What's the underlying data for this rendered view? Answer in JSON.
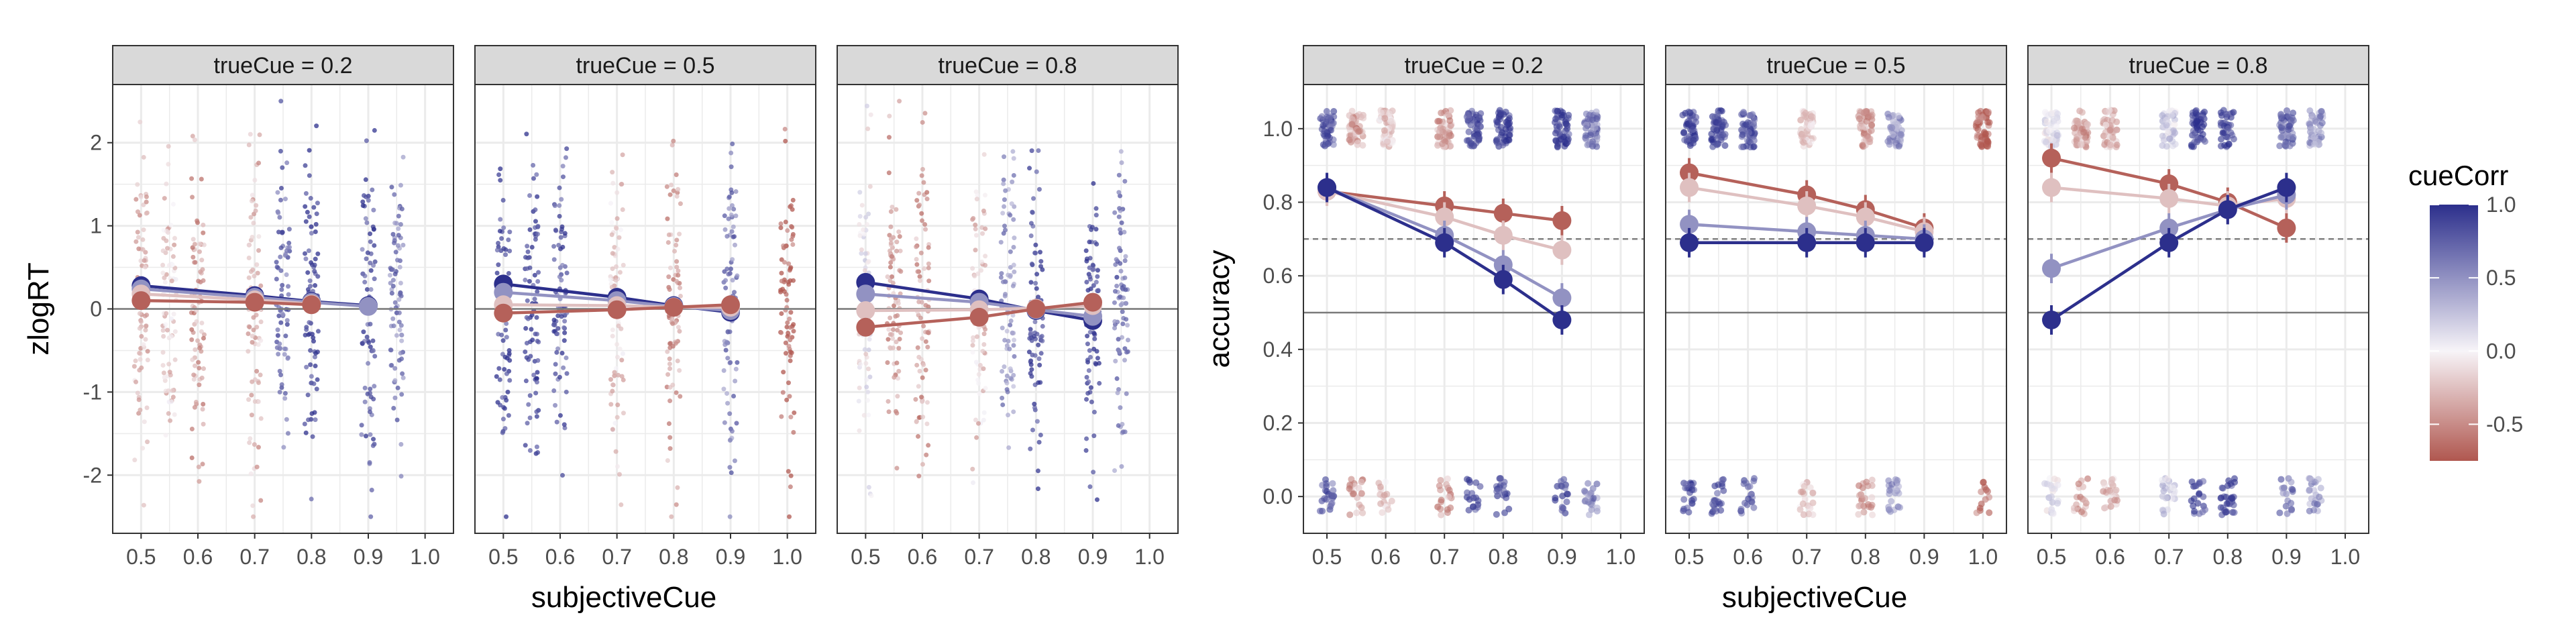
{
  "chart_data": [
    {
      "type": "scatter",
      "xlabel": "subjectiveCue",
      "ylabel": "zlogRT",
      "xlim": [
        0.45,
        1.05
      ],
      "ylim": [
        -2.7,
        2.7
      ],
      "xticks": [
        "0.5",
        "0.6",
        "0.7",
        "0.8",
        "0.9",
        "1.0"
      ],
      "yticks": [
        "-2",
        "-1",
        "0",
        "1",
        "2"
      ],
      "grid": true,
      "reference_lines": [
        {
          "y": 0,
          "style": "solid"
        }
      ],
      "facets": [
        {
          "label": "trueCue = 0.2",
          "raw_groups": [
            {
              "x": 0.5,
              "cueCorr": -0.3
            },
            {
              "x": 0.55,
              "cueCorr": -0.2
            },
            {
              "x": 0.6,
              "cueCorr": -0.4
            },
            {
              "x": 0.7,
              "cueCorr": -0.3
            },
            {
              "x": 0.75,
              "cueCorr": 0.7
            },
            {
              "x": 0.8,
              "cueCorr": 0.9
            },
            {
              "x": 0.9,
              "cueCorr": 0.8
            },
            {
              "x": 0.95,
              "cueCorr": 0.6
            }
          ],
          "series": [
            {
              "cueCorr": 1.0,
              "points": [
                [
                  0.5,
                  0.28
                ],
                [
                  0.7,
                  0.16
                ],
                [
                  0.8,
                  0.09
                ],
                [
                  0.9,
                  0.04
                ]
              ]
            },
            {
              "cueCorr": 0.5,
              "points": [
                [
                  0.5,
                  0.24
                ],
                [
                  0.7,
                  0.14
                ],
                [
                  0.8,
                  0.08
                ],
                [
                  0.9,
                  0.03
                ]
              ]
            },
            {
              "cueCorr": -0.25,
              "points": [
                [
                  0.5,
                  0.18
                ],
                [
                  0.7,
                  0.11
                ],
                [
                  0.8,
                  0.06
                ]
              ]
            },
            {
              "cueCorr": -0.7,
              "points": [
                [
                  0.5,
                  0.1
                ],
                [
                  0.7,
                  0.08
                ],
                [
                  0.8,
                  0.05
                ]
              ]
            }
          ]
        },
        {
          "label": "trueCue = 0.5",
          "raw_groups": [
            {
              "x": 0.5,
              "cueCorr": 0.9
            },
            {
              "x": 0.55,
              "cueCorr": 0.9
            },
            {
              "x": 0.6,
              "cueCorr": 0.8
            },
            {
              "x": 0.7,
              "cueCorr": -0.2
            },
            {
              "x": 0.8,
              "cueCorr": -0.4
            },
            {
              "x": 0.9,
              "cueCorr": 0.6
            },
            {
              "x": 1.0,
              "cueCorr": -0.7
            }
          ],
          "series": [
            {
              "cueCorr": 1.0,
              "points": [
                [
                  0.5,
                  0.3
                ],
                [
                  0.7,
                  0.14
                ],
                [
                  0.8,
                  0.04
                ],
                [
                  0.9,
                  -0.04
                ]
              ]
            },
            {
              "cueCorr": 0.5,
              "points": [
                [
                  0.5,
                  0.2
                ],
                [
                  0.7,
                  0.1
                ],
                [
                  0.8,
                  0.03
                ],
                [
                  0.9,
                  -0.02
                ]
              ]
            },
            {
              "cueCorr": -0.25,
              "points": [
                [
                  0.5,
                  0.05
                ],
                [
                  0.7,
                  0.04
                ],
                [
                  0.8,
                  0.02
                ],
                [
                  0.9,
                  0.02
                ]
              ]
            },
            {
              "cueCorr": -0.7,
              "points": [
                [
                  0.5,
                  -0.05
                ],
                [
                  0.7,
                  -0.01
                ],
                [
                  0.8,
                  0.02
                ],
                [
                  0.9,
                  0.05
                ]
              ]
            }
          ]
        },
        {
          "label": "trueCue = 0.8",
          "raw_groups": [
            {
              "x": 0.5,
              "cueCorr": 0.0
            },
            {
              "x": 0.55,
              "cueCorr": -0.4
            },
            {
              "x": 0.6,
              "cueCorr": -0.4
            },
            {
              "x": 0.7,
              "cueCorr": -0.2
            },
            {
              "x": 0.75,
              "cueCorr": 0.5
            },
            {
              "x": 0.8,
              "cueCorr": 0.9
            },
            {
              "x": 0.9,
              "cueCorr": 0.9
            },
            {
              "x": 0.95,
              "cueCorr": 0.6
            }
          ],
          "series": [
            {
              "cueCorr": 1.0,
              "points": [
                [
                  0.5,
                  0.32
                ],
                [
                  0.7,
                  0.12
                ],
                [
                  0.8,
                  -0.02
                ],
                [
                  0.9,
                  -0.14
                ]
              ]
            },
            {
              "cueCorr": 0.5,
              "points": [
                [
                  0.5,
                  0.18
                ],
                [
                  0.7,
                  0.08
                ],
                [
                  0.8,
                  -0.01
                ],
                [
                  0.9,
                  -0.09
                ]
              ]
            },
            {
              "cueCorr": -0.25,
              "points": [
                [
                  0.5,
                  -0.02
                ],
                [
                  0.7,
                  -0.01
                ],
                [
                  0.8,
                  0.01
                ],
                [
                  0.9,
                  0.04
                ]
              ]
            },
            {
              "cueCorr": -0.7,
              "points": [
                [
                  0.5,
                  -0.22
                ],
                [
                  0.7,
                  -0.1
                ],
                [
                  0.8,
                  0.0
                ],
                [
                  0.9,
                  0.08
                ]
              ]
            }
          ]
        }
      ]
    },
    {
      "type": "scatter",
      "xlabel": "subjectiveCue",
      "ylabel": "accuracy",
      "xlim": [
        0.46,
        1.04
      ],
      "ylim": [
        -0.1,
        1.12
      ],
      "xticks": [
        "0.5",
        "0.6",
        "0.7",
        "0.8",
        "0.9",
        "1.0"
      ],
      "yticks": [
        "0.0",
        "0.2",
        "0.4",
        "0.6",
        "0.8",
        "1.0"
      ],
      "grid": true,
      "reference_lines": [
        {
          "y": 0.5,
          "style": "solid"
        },
        {
          "y": 0.7,
          "style": "dashed"
        }
      ],
      "facets": [
        {
          "label": "trueCue = 0.2",
          "raw_groups": [
            {
              "x": 0.5,
              "cueCorr": 0.8
            },
            {
              "x": 0.55,
              "cueCorr": -0.4
            },
            {
              "x": 0.6,
              "cueCorr": -0.2
            },
            {
              "x": 0.7,
              "cueCorr": -0.4
            },
            {
              "x": 0.75,
              "cueCorr": 0.9
            },
            {
              "x": 0.8,
              "cueCorr": 0.9
            },
            {
              "x": 0.9,
              "cueCorr": 0.9
            },
            {
              "x": 0.95,
              "cueCorr": 0.6
            }
          ],
          "series": [
            {
              "cueCorr": -0.7,
              "points": [
                [
                  0.5,
                  0.83
                ],
                [
                  0.7,
                  0.79
                ],
                [
                  0.8,
                  0.77
                ],
                [
                  0.9,
                  0.75
                ]
              ]
            },
            {
              "cueCorr": -0.25,
              "points": [
                [
                  0.5,
                  0.83
                ],
                [
                  0.7,
                  0.76
                ],
                [
                  0.8,
                  0.71
                ],
                [
                  0.9,
                  0.67
                ]
              ]
            },
            {
              "cueCorr": 0.5,
              "points": [
                [
                  0.5,
                  0.84
                ],
                [
                  0.7,
                  0.71
                ],
                [
                  0.8,
                  0.63
                ],
                [
                  0.9,
                  0.54
                ]
              ]
            },
            {
              "cueCorr": 1.0,
              "points": [
                [
                  0.5,
                  0.84
                ],
                [
                  0.7,
                  0.69
                ],
                [
                  0.8,
                  0.59
                ],
                [
                  0.9,
                  0.48
                ]
              ]
            }
          ]
        },
        {
          "label": "trueCue = 0.5",
          "raw_groups": [
            {
              "x": 0.5,
              "cueCorr": 0.9
            },
            {
              "x": 0.55,
              "cueCorr": 0.9
            },
            {
              "x": 0.6,
              "cueCorr": 0.8
            },
            {
              "x": 0.7,
              "cueCorr": -0.2
            },
            {
              "x": 0.8,
              "cueCorr": -0.4
            },
            {
              "x": 0.85,
              "cueCorr": 0.5
            },
            {
              "x": 1.0,
              "cueCorr": -0.7
            }
          ],
          "series": [
            {
              "cueCorr": -0.7,
              "points": [
                [
                  0.5,
                  0.88
                ],
                [
                  0.7,
                  0.82
                ],
                [
                  0.8,
                  0.78
                ],
                [
                  0.9,
                  0.73
                ]
              ]
            },
            {
              "cueCorr": -0.25,
              "points": [
                [
                  0.5,
                  0.84
                ],
                [
                  0.7,
                  0.79
                ],
                [
                  0.8,
                  0.76
                ],
                [
                  0.9,
                  0.72
                ]
              ]
            },
            {
              "cueCorr": 0.5,
              "points": [
                [
                  0.5,
                  0.74
                ],
                [
                  0.7,
                  0.72
                ],
                [
                  0.8,
                  0.71
                ],
                [
                  0.9,
                  0.7
                ]
              ]
            },
            {
              "cueCorr": 1.0,
              "points": [
                [
                  0.5,
                  0.69
                ],
                [
                  0.7,
                  0.69
                ],
                [
                  0.8,
                  0.69
                ],
                [
                  0.9,
                  0.69
                ]
              ]
            }
          ]
        },
        {
          "label": "trueCue = 0.8",
          "raw_groups": [
            {
              "x": 0.5,
              "cueCorr": 0.1
            },
            {
              "x": 0.55,
              "cueCorr": -0.4
            },
            {
              "x": 0.6,
              "cueCorr": -0.3
            },
            {
              "x": 0.7,
              "cueCorr": 0.2
            },
            {
              "x": 0.75,
              "cueCorr": 0.9
            },
            {
              "x": 0.8,
              "cueCorr": 0.9
            },
            {
              "x": 0.9,
              "cueCorr": 0.7
            },
            {
              "x": 0.95,
              "cueCorr": 0.5
            }
          ],
          "series": [
            {
              "cueCorr": -0.7,
              "points": [
                [
                  0.5,
                  0.92
                ],
                [
                  0.7,
                  0.85
                ],
                [
                  0.8,
                  0.8
                ],
                [
                  0.9,
                  0.73
                ]
              ]
            },
            {
              "cueCorr": -0.25,
              "points": [
                [
                  0.5,
                  0.84
                ],
                [
                  0.7,
                  0.81
                ],
                [
                  0.8,
                  0.79
                ],
                [
                  0.9,
                  0.81
                ]
              ]
            },
            {
              "cueCorr": 0.5,
              "points": [
                [
                  0.5,
                  0.62
                ],
                [
                  0.7,
                  0.73
                ],
                [
                  0.8,
                  0.78
                ],
                [
                  0.9,
                  0.82
                ]
              ]
            },
            {
              "cueCorr": 1.0,
              "points": [
                [
                  0.5,
                  0.48
                ],
                [
                  0.7,
                  0.69
                ],
                [
                  0.8,
                  0.78
                ],
                [
                  0.9,
                  0.84
                ]
              ]
            }
          ]
        }
      ]
    }
  ],
  "legend": {
    "title": "cueCorr",
    "type": "colorbar",
    "range": [
      -0.75,
      1.0
    ],
    "ticks": [
      "1.0",
      "0.5",
      "0.0",
      "-0.5"
    ],
    "colors": {
      "low": "#b0574f",
      "mid": "#f7f4f8",
      "high": "#2c2f8c"
    }
  },
  "colors": {
    "panel_background": "#ffffff",
    "grid": "#ebebeb",
    "strip_background": "#d9d9d9",
    "panel_border": "#333333"
  }
}
